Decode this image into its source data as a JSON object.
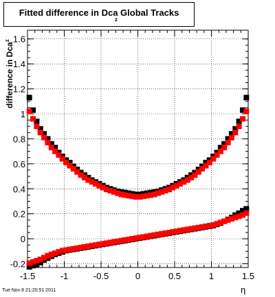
{
  "title": "Fitted difference in Dca",
  "title_subscript": "z",
  "title_suffix": " Global Tracks",
  "ylabel": "difference in Dca",
  "ylabel_subscript": "z",
  "xlabel": "η",
  "datestamp": "Tue Nov  8 21:20:51 2011",
  "chart_data": {
    "type": "scatter",
    "xlim": [
      -1.5,
      1.5
    ],
    "ylim": [
      -0.23,
      1.67
    ],
    "xticks": [
      "-1.5",
      "-1",
      "-0.5",
      "0",
      "0.5",
      "1",
      "1.5"
    ],
    "yticks": [
      "-0.2",
      "0",
      "0.2",
      "0.4",
      "0.6",
      "0.8",
      "1",
      "1.2",
      "1.4",
      "1.6"
    ],
    "grid": true,
    "series": [
      {
        "color": "#000000",
        "x": [
          -1.475,
          -1.425,
          -1.375,
          -1.325,
          -1.275,
          -1.225,
          -1.175,
          -1.125,
          -1.075,
          -1.025,
          -0.975,
          -0.925,
          -0.875,
          -0.825,
          -0.775,
          -0.725,
          -0.675,
          -0.625,
          -0.575,
          -0.525,
          -0.475,
          -0.425,
          -0.375,
          -0.325,
          -0.275,
          -0.225,
          -0.175,
          -0.125,
          -0.075,
          -0.025,
          0.025,
          0.075,
          0.125,
          0.175,
          0.225,
          0.275,
          0.325,
          0.375,
          0.425,
          0.475,
          0.525,
          0.575,
          0.625,
          0.675,
          0.725,
          0.775,
          0.825,
          0.875,
          0.925,
          0.975,
          1.025,
          1.075,
          1.125,
          1.175,
          1.225,
          1.275,
          1.325,
          1.375,
          1.425,
          1.475
        ],
        "y": [
          1.13,
          1.03,
          0.94,
          0.88,
          0.84,
          0.8,
          0.76,
          0.73,
          0.69,
          0.66,
          0.63,
          0.61,
          0.58,
          0.555,
          0.53,
          0.51,
          0.49,
          0.47,
          0.455,
          0.44,
          0.425,
          0.41,
          0.4,
          0.39,
          0.38,
          0.375,
          0.37,
          0.365,
          0.36,
          0.355,
          0.355,
          0.36,
          0.365,
          0.37,
          0.375,
          0.38,
          0.39,
          0.4,
          0.41,
          0.425,
          0.44,
          0.455,
          0.47,
          0.49,
          0.51,
          0.53,
          0.555,
          0.58,
          0.61,
          0.63,
          0.66,
          0.69,
          0.73,
          0.76,
          0.8,
          0.84,
          0.88,
          0.94,
          1.03,
          1.13
        ]
      },
      {
        "color": "#ff0000",
        "x": [
          -1.475,
          -1.425,
          -1.375,
          -1.325,
          -1.275,
          -1.225,
          -1.175,
          -1.125,
          -1.075,
          -1.025,
          -0.975,
          -0.925,
          -0.875,
          -0.825,
          -0.775,
          -0.725,
          -0.675,
          -0.625,
          -0.575,
          -0.525,
          -0.475,
          -0.425,
          -0.375,
          -0.325,
          -0.275,
          -0.225,
          -0.175,
          -0.125,
          -0.075,
          -0.025,
          0.025,
          0.075,
          0.125,
          0.175,
          0.225,
          0.275,
          0.325,
          0.375,
          0.425,
          0.475,
          0.525,
          0.575,
          0.625,
          0.675,
          0.725,
          0.775,
          0.825,
          0.875,
          0.925,
          0.975,
          1.025,
          1.075,
          1.125,
          1.175,
          1.225,
          1.275,
          1.325,
          1.375,
          1.425,
          1.475
        ],
        "y": [
          1.02,
          0.96,
          0.9,
          0.85,
          0.81,
          0.77,
          0.73,
          0.7,
          0.67,
          0.64,
          0.61,
          0.585,
          0.56,
          0.535,
          0.51,
          0.49,
          0.47,
          0.455,
          0.44,
          0.425,
          0.41,
          0.395,
          0.385,
          0.375,
          0.365,
          0.355,
          0.35,
          0.345,
          0.34,
          0.335,
          0.335,
          0.34,
          0.345,
          0.35,
          0.355,
          0.365,
          0.375,
          0.385,
          0.395,
          0.41,
          0.425,
          0.44,
          0.455,
          0.47,
          0.49,
          0.51,
          0.535,
          0.56,
          0.585,
          0.61,
          0.64,
          0.67,
          0.7,
          0.73,
          0.77,
          0.81,
          0.85,
          0.9,
          0.96,
          1.02
        ]
      },
      {
        "color": "#000000",
        "x": [
          -1.475,
          -1.425,
          -1.375,
          -1.325,
          -1.275,
          -1.225,
          -1.175,
          -1.125,
          -1.075,
          -1.025,
          -0.975,
          -0.925,
          -0.875,
          -0.825,
          -0.775,
          -0.725,
          -0.675,
          -0.625,
          -0.575,
          -0.525,
          -0.475,
          -0.425,
          -0.375,
          -0.325,
          -0.275,
          -0.225,
          -0.175,
          -0.125,
          -0.075,
          -0.025,
          0.025,
          0.075,
          0.125,
          0.175,
          0.225,
          0.275,
          0.325,
          0.375,
          0.425,
          0.475,
          0.525,
          0.575,
          0.625,
          0.675,
          0.725,
          0.775,
          0.825,
          0.875,
          0.925,
          0.975,
          1.025,
          1.075,
          1.125,
          1.175,
          1.225,
          1.275,
          1.325,
          1.375,
          1.425,
          1.475
        ],
        "y": [
          -0.225,
          -0.215,
          -0.205,
          -0.19,
          -0.17,
          -0.155,
          -0.14,
          -0.125,
          -0.115,
          -0.105,
          -0.095,
          -0.09,
          -0.085,
          -0.08,
          -0.075,
          -0.07,
          -0.065,
          -0.06,
          -0.055,
          -0.05,
          -0.045,
          -0.04,
          -0.035,
          -0.03,
          -0.025,
          -0.02,
          -0.015,
          -0.01,
          -0.005,
          0.0,
          0.005,
          0.01,
          0.015,
          0.02,
          0.025,
          0.03,
          0.035,
          0.04,
          0.045,
          0.05,
          0.055,
          0.06,
          0.065,
          0.07,
          0.075,
          0.08,
          0.085,
          0.09,
          0.095,
          0.1,
          0.105,
          0.115,
          0.125,
          0.14,
          0.155,
          0.17,
          0.19,
          0.205,
          0.225,
          0.24
        ]
      },
      {
        "color": "#ff0000",
        "x": [
          -1.475,
          -1.425,
          -1.375,
          -1.325,
          -1.275,
          -1.225,
          -1.175,
          -1.125,
          -1.075,
          -1.025,
          -0.975,
          -0.925,
          -0.875,
          -0.825,
          -0.775,
          -0.725,
          -0.675,
          -0.625,
          -0.575,
          -0.525,
          -0.475,
          -0.425,
          -0.375,
          -0.325,
          -0.275,
          -0.225,
          -0.175,
          -0.125,
          -0.075,
          -0.025,
          0.025,
          0.075,
          0.125,
          0.175,
          0.225,
          0.275,
          0.325,
          0.375,
          0.425,
          0.475,
          0.525,
          0.575,
          0.625,
          0.675,
          0.725,
          0.775,
          0.825,
          0.875,
          0.925,
          0.975,
          1.025,
          1.075,
          1.125,
          1.175,
          1.225,
          1.275,
          1.325,
          1.375,
          1.425,
          1.475
        ],
        "y": [
          -0.195,
          -0.185,
          -0.175,
          -0.165,
          -0.15,
          -0.135,
          -0.125,
          -0.115,
          -0.105,
          -0.095,
          -0.09,
          -0.085,
          -0.08,
          -0.075,
          -0.07,
          -0.065,
          -0.06,
          -0.055,
          -0.05,
          -0.045,
          -0.04,
          -0.035,
          -0.03,
          -0.025,
          -0.02,
          -0.015,
          -0.01,
          -0.005,
          0.0,
          0.005,
          0.01,
          0.015,
          0.02,
          0.025,
          0.03,
          0.035,
          0.04,
          0.045,
          0.05,
          0.055,
          0.06,
          0.065,
          0.07,
          0.075,
          0.08,
          0.085,
          0.09,
          0.095,
          0.1,
          0.105,
          0.11,
          0.12,
          0.13,
          0.14,
          0.15,
          0.16,
          0.17,
          0.18,
          0.19,
          0.205
        ]
      }
    ]
  }
}
